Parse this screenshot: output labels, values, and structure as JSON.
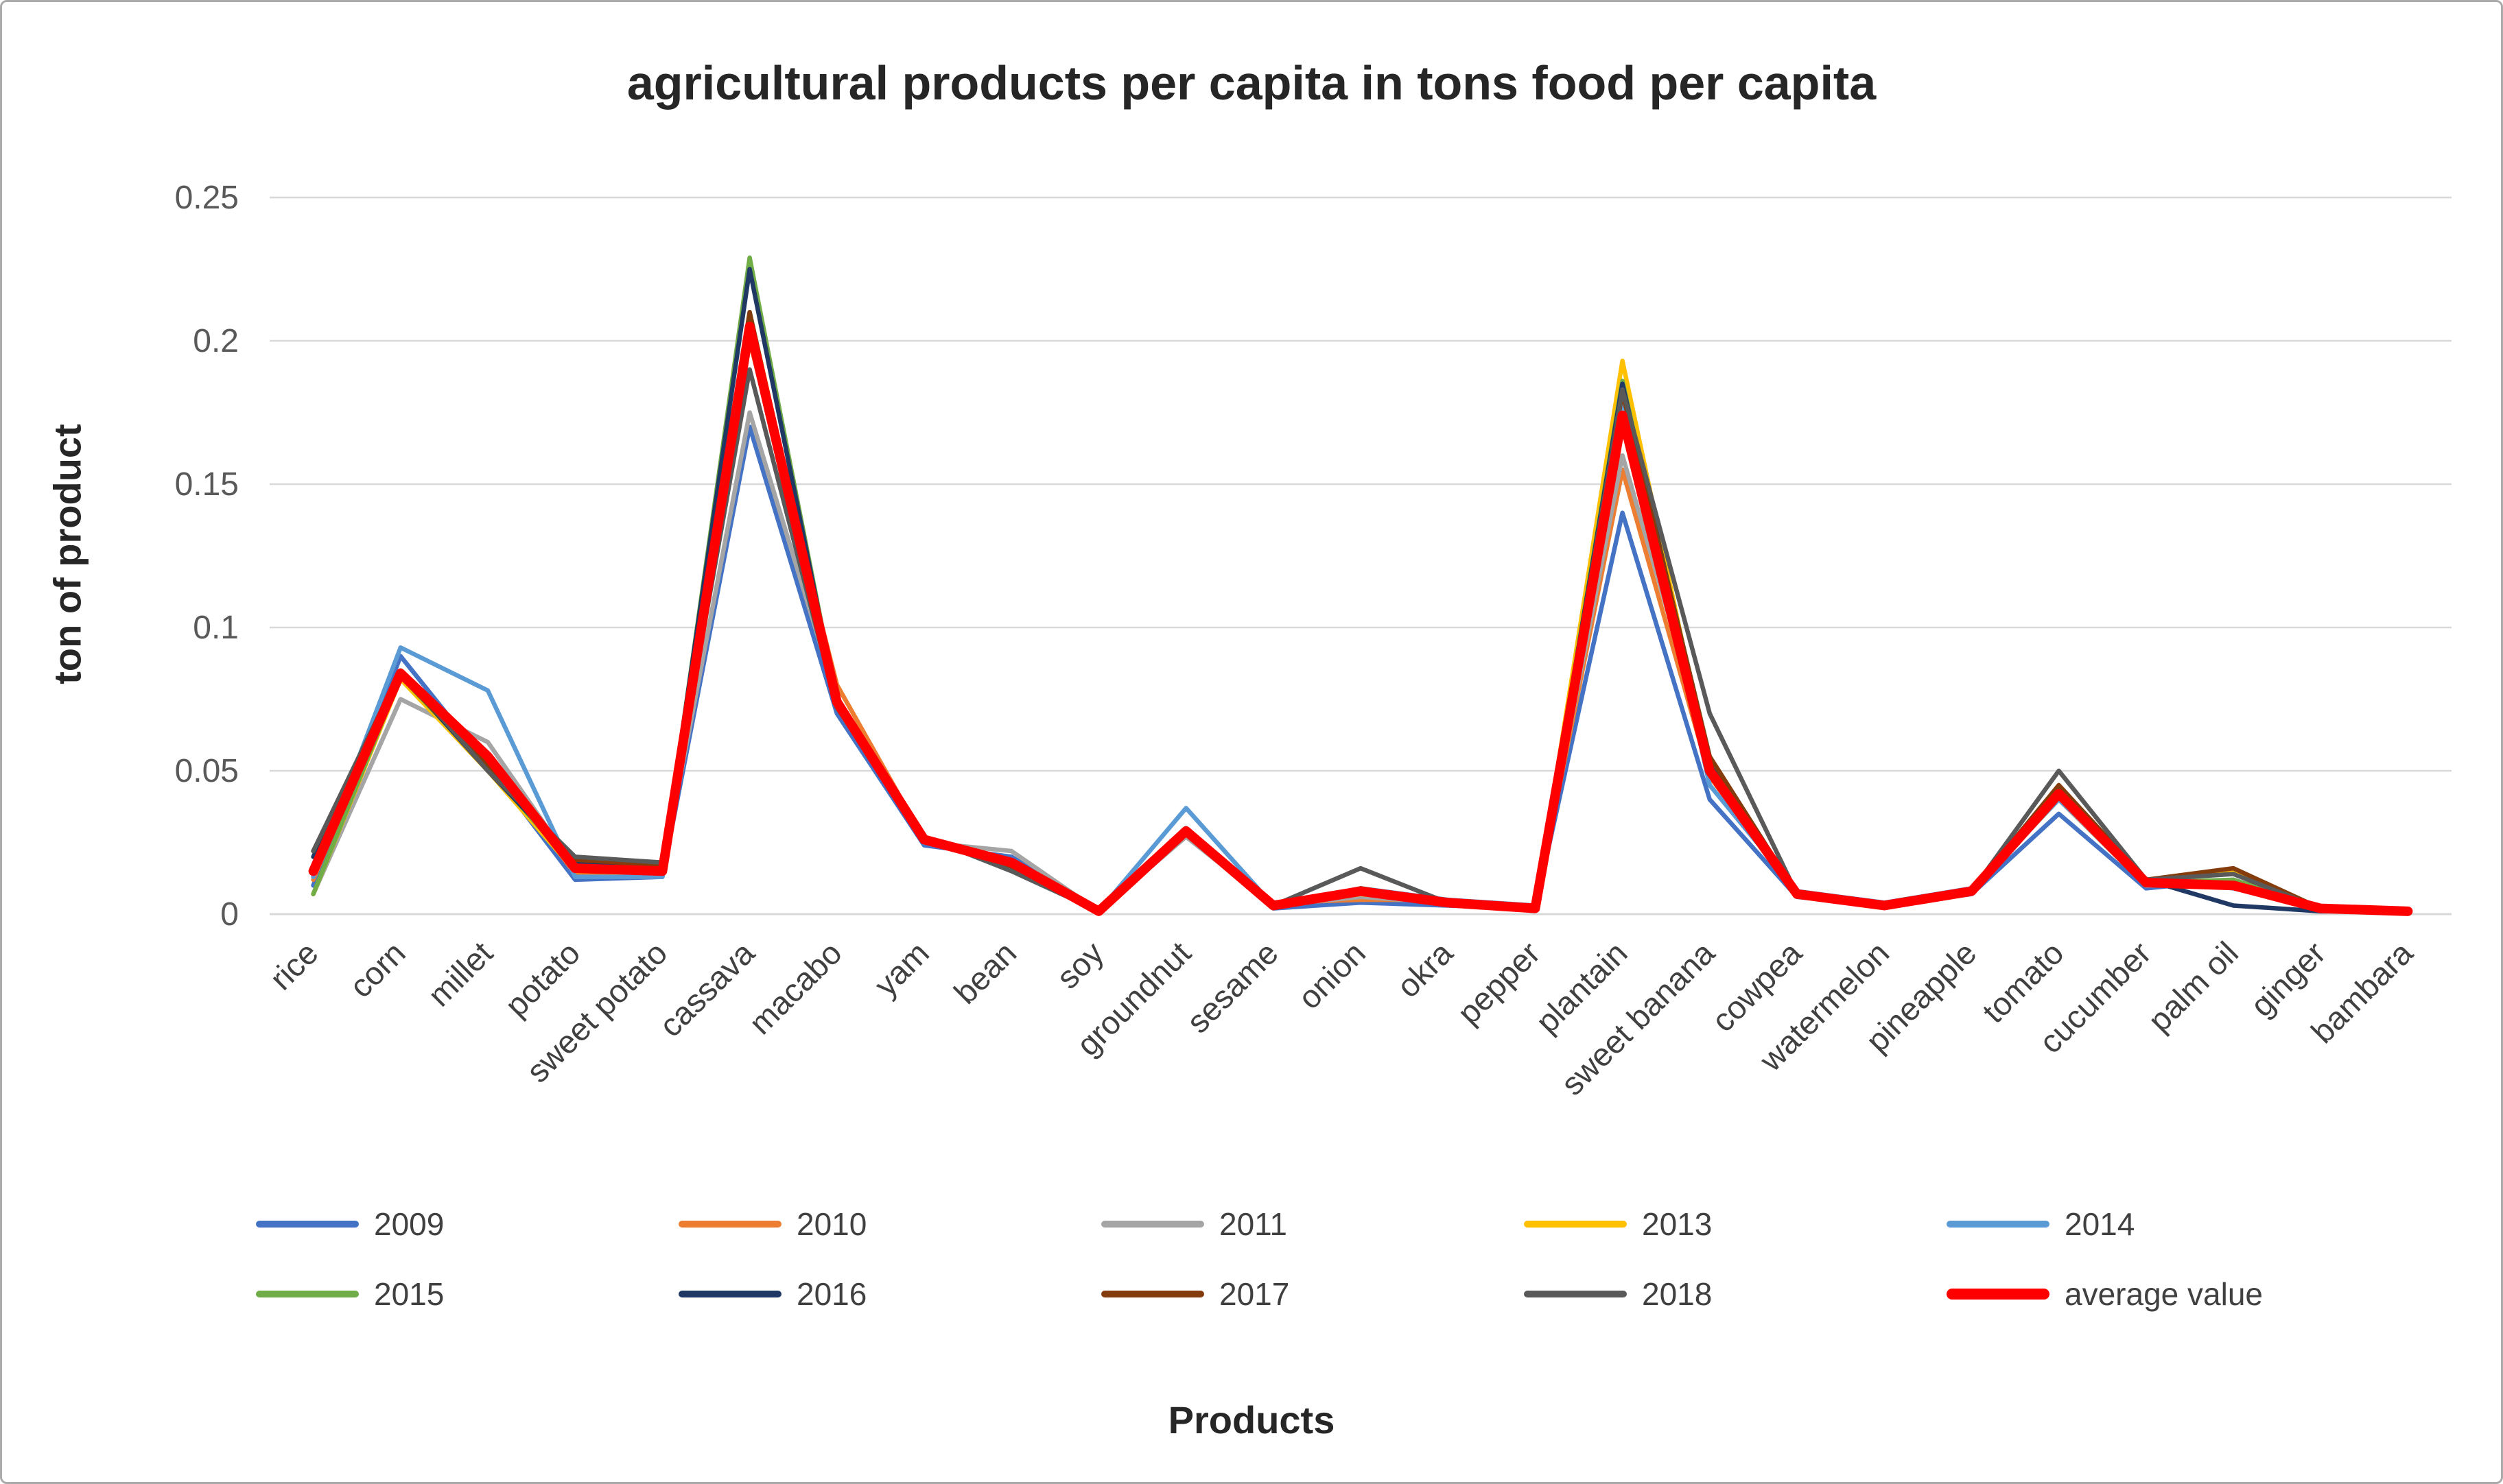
{
  "chart_data": {
    "type": "line",
    "title": "agricultural products per capita in tons food per capita",
    "xlabel": "Products",
    "ylabel": "ton of product",
    "ylim": [
      0,
      0.25
    ],
    "yticks": [
      0,
      0.05,
      0.1,
      0.15,
      0.2,
      0.25
    ],
    "grid": true,
    "grid_color": "#d9d9d9",
    "legend_position": "bottom",
    "categories": [
      "rice",
      "corn",
      "millet",
      "potato",
      "sweet potato",
      "cassava",
      "macabo",
      "yam",
      "bean",
      "soy",
      "groundnut",
      "sesame",
      "onion",
      "okra",
      "pepper",
      "plantain",
      "sweet banana",
      "cowpea",
      "watermelon",
      "pineapple",
      "tomato",
      "cucumber",
      "palm oil",
      "ginger",
      "bambara"
    ],
    "series": [
      {
        "name": "2009",
        "color": "#4472C4",
        "values": [
          0.01,
          0.09,
          0.052,
          0.012,
          0.013,
          0.17,
          0.07,
          0.024,
          0.02,
          0.001,
          0.03,
          0.002,
          0.004,
          0.003,
          0.002,
          0.14,
          0.04,
          0.006,
          0.003,
          0.007,
          0.035,
          0.009,
          0.012,
          0.002,
          0.001
        ]
      },
      {
        "name": "2010",
        "color": "#ED7D31",
        "values": [
          0.012,
          0.085,
          0.055,
          0.014,
          0.014,
          0.2,
          0.08,
          0.026,
          0.018,
          0.001,
          0.028,
          0.004,
          0.005,
          0.005,
          0.002,
          0.155,
          0.048,
          0.007,
          0.003,
          0.008,
          0.04,
          0.01,
          0.01,
          0.002,
          0.001
        ]
      },
      {
        "name": "2011",
        "color": "#A5A5A5",
        "values": [
          0.007,
          0.075,
          0.06,
          0.016,
          0.015,
          0.175,
          0.075,
          0.025,
          0.022,
          0.001,
          0.027,
          0.003,
          0.006,
          0.004,
          0.002,
          0.16,
          0.055,
          0.007,
          0.003,
          0.008,
          0.04,
          0.01,
          0.01,
          0.002,
          0.001
        ]
      },
      {
        "name": "2013",
        "color": "#FFC000",
        "values": [
          0.007,
          0.082,
          0.05,
          0.015,
          0.014,
          0.21,
          0.075,
          0.026,
          0.017,
          0.001,
          0.028,
          0.003,
          0.007,
          0.004,
          0.002,
          0.193,
          0.05,
          0.007,
          0.003,
          0.008,
          0.042,
          0.011,
          0.015,
          0.002,
          0.001
        ]
      },
      {
        "name": "2014",
        "color": "#5B9BD5",
        "values": [
          0.013,
          0.093,
          0.078,
          0.013,
          0.013,
          0.21,
          0.072,
          0.026,
          0.018,
          0.001,
          0.037,
          0.003,
          0.009,
          0.005,
          0.003,
          0.18,
          0.045,
          0.008,
          0.004,
          0.009,
          0.04,
          0.012,
          0.009,
          0.002,
          0.001
        ]
      },
      {
        "name": "2015",
        "color": "#70AD47",
        "values": [
          0.007,
          0.083,
          0.051,
          0.016,
          0.015,
          0.229,
          0.074,
          0.027,
          0.017,
          0.001,
          0.028,
          0.003,
          0.008,
          0.004,
          0.002,
          0.186,
          0.05,
          0.007,
          0.003,
          0.008,
          0.043,
          0.011,
          0.012,
          0.002,
          0.001
        ]
      },
      {
        "name": "2016",
        "color": "#1F3864",
        "values": [
          0.02,
          0.084,
          0.05,
          0.018,
          0.016,
          0.225,
          0.074,
          0.027,
          0.016,
          0.001,
          0.028,
          0.003,
          0.008,
          0.004,
          0.002,
          0.185,
          0.052,
          0.007,
          0.003,
          0.008,
          0.044,
          0.012,
          0.003,
          0.001,
          0.001
        ]
      },
      {
        "name": "2017",
        "color": "#843C0C",
        "values": [
          0.022,
          0.083,
          0.052,
          0.019,
          0.017,
          0.21,
          0.073,
          0.027,
          0.016,
          0.001,
          0.029,
          0.003,
          0.009,
          0.004,
          0.002,
          0.182,
          0.055,
          0.007,
          0.003,
          0.008,
          0.045,
          0.012,
          0.016,
          0.002,
          0.001
        ]
      },
      {
        "name": "2018",
        "color": "#595959",
        "values": [
          0.022,
          0.085,
          0.05,
          0.02,
          0.018,
          0.19,
          0.072,
          0.027,
          0.015,
          0.001,
          0.029,
          0.003,
          0.016,
          0.004,
          0.002,
          0.183,
          0.07,
          0.007,
          0.003,
          0.008,
          0.05,
          0.012,
          0.014,
          0.002,
          0.001
        ]
      },
      {
        "name": "average value",
        "color": "#FF0000",
        "emphasis": true,
        "values": [
          0.015,
          0.084,
          0.055,
          0.016,
          0.015,
          0.205,
          0.074,
          0.026,
          0.018,
          0.001,
          0.029,
          0.003,
          0.008,
          0.004,
          0.002,
          0.174,
          0.05,
          0.007,
          0.003,
          0.008,
          0.042,
          0.011,
          0.01,
          0.002,
          0.001
        ]
      }
    ]
  }
}
